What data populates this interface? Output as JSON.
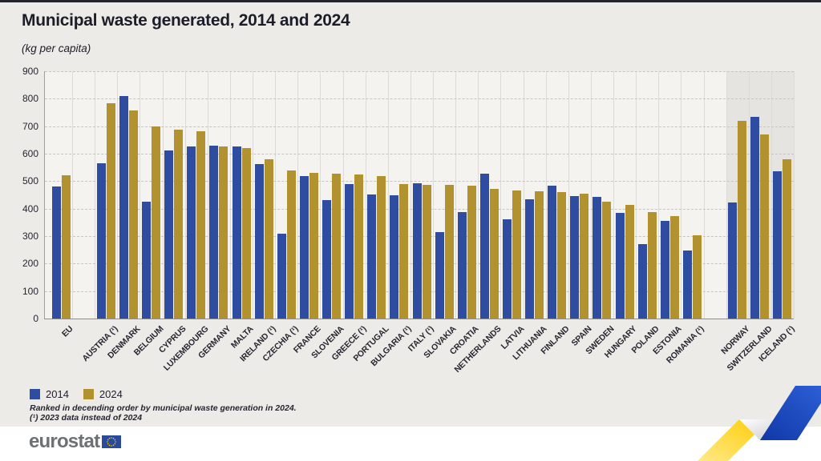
{
  "page": {
    "top_bar_color": "#23242e",
    "background": "#edebe8",
    "footer_background": "#ffffff"
  },
  "chart_data": {
    "type": "bar",
    "title": "Municipal waste generated, 2014 and 2024",
    "subtitle": "(kg per capita)",
    "ylabel": "",
    "ylim": [
      0,
      900
    ],
    "ytick_step": 100,
    "yticks": [
      0,
      100,
      200,
      300,
      400,
      500,
      600,
      700,
      800,
      900
    ],
    "grid": true,
    "legend_position": "bottom-left",
    "categories": [
      "EU",
      "AUSTRIA (¹)",
      "DENMARK",
      "BELGIUM",
      "CYPRUS",
      "LUXEMBOURG",
      "GERMANY",
      "MALTA",
      "IRELAND (¹)",
      "CZECHIA (¹)",
      "FRANCE",
      "SLOVENIA",
      "GREECE (¹)",
      "PORTUGAL",
      "BULGARIA (¹)",
      "ITALY (¹)",
      "SLOVAKIA",
      "CROATIA",
      "NETHERLANDS",
      "LATVIA",
      "LITHUANIA",
      "FINLAND",
      "SPAIN",
      "SWEDEN",
      "HUNGARY",
      "POLAND",
      "ESTONIA",
      "ROMANIA (¹)",
      "NORWAY",
      "SWITZERLAND",
      "ICELAND (¹)"
    ],
    "series": [
      {
        "name": "2014",
        "color": "#2e4da1",
        "values": [
          481,
          565,
          810,
          425,
          612,
          625,
          630,
          627,
          562,
          310,
          517,
          432,
          489,
          451,
          449,
          491,
          316,
          387,
          526,
          362,
          433,
          483,
          447,
          442,
          385,
          272,
          355,
          248,
          423,
          735,
          537
        ]
      },
      {
        "name": "2024",
        "color": "#b2922e",
        "values": [
          520,
          784,
          756,
          700,
          688,
          682,
          627,
          620,
          580,
          538,
          531,
          527,
          524,
          519,
          488,
          487,
          487,
          483,
          472,
          466,
          464,
          459,
          455,
          425,
          413,
          386,
          373,
          303,
          719,
          671,
          581
        ]
      }
    ],
    "gap_after_indices": [
      0,
      27
    ],
    "highlight_categories": [
      "NORWAY",
      "SWITZERLAND",
      "ICELAND (¹)"
    ],
    "highlight_background": "#e6e4e1",
    "footnotes": [
      "Ranked in decending order by municipal waste generation in 2024.",
      "(¹) 2023 data instead of 2024"
    ]
  },
  "footer": {
    "logo_text": "eurostat"
  },
  "decoration": {
    "ribbon_colors": {
      "yellow": "#ffcc00",
      "white": "#ffffff",
      "blue": "#1c48c0"
    },
    "flag_blue": "#2a4b9c",
    "star_yellow": "#ffcc00"
  }
}
